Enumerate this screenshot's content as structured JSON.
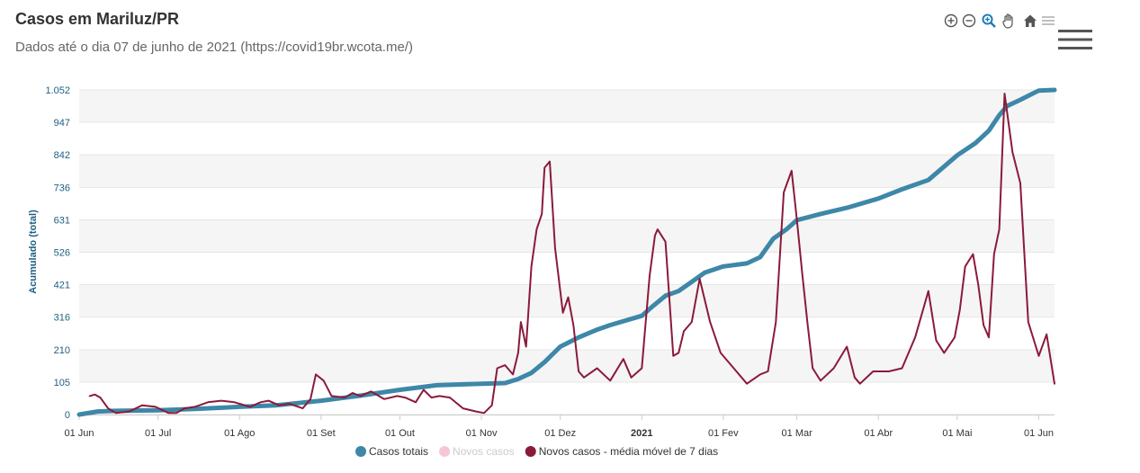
{
  "header": {
    "title": "Casos em Mariluz/PR",
    "subtitle": "Dados até o dia 07 de junho de 2021 (https://covid19br.wcota.me/)"
  },
  "toolbar": {
    "icons": [
      "zoom-in-icon",
      "zoom-out-icon",
      "zoom-icon",
      "pan-icon",
      "home-icon",
      "menu-icon"
    ]
  },
  "colors": {
    "total": "#3e87a8",
    "new_cases": "#f5c6d8",
    "moving_avg": "#8b1a3a",
    "axis_text": "#1f5f82",
    "band": "#f5f5f5"
  },
  "chart_data": {
    "type": "line",
    "x_type": "date",
    "x_range": [
      "2020-06-01",
      "2021-06-07"
    ],
    "ylabel": "Acumulado (total)",
    "ylim": [
      0,
      1052
    ],
    "yticks": [
      0,
      105,
      210,
      316,
      421,
      526,
      631,
      736,
      842,
      947,
      1052
    ],
    "ytick_labels": [
      "0",
      "105",
      "210",
      "316",
      "421",
      "526",
      "631",
      "736",
      "842",
      "947",
      "1.052"
    ],
    "xticks": [
      "2020-06-01",
      "2020-07-01",
      "2020-08-01",
      "2020-09-01",
      "2020-10-01",
      "2020-11-01",
      "2020-12-01",
      "2021-01-01",
      "2021-02-01",
      "2021-03-01",
      "2021-04-01",
      "2021-05-01",
      "2021-06-01"
    ],
    "xtick_labels": [
      "01 Jun",
      "01 Jul",
      "01 Ago",
      "01 Set",
      "01 Out",
      "01 Nov",
      "01 Dez",
      "2021",
      "01 Fev",
      "01 Mar",
      "01 Abr",
      "01 Mai",
      "01 Jun"
    ],
    "bold_ticks": [
      "2021"
    ],
    "grid": true,
    "legend_position": "bottom",
    "series": [
      {
        "name": "Casos totais",
        "color": "#3e87a8",
        "x": [
          "2020-06-01",
          "2020-06-08",
          "2020-06-15",
          "2020-07-01",
          "2020-07-15",
          "2020-08-01",
          "2020-08-15",
          "2020-09-01",
          "2020-09-15",
          "2020-10-01",
          "2020-10-15",
          "2020-11-01",
          "2020-11-10",
          "2020-11-15",
          "2020-11-20",
          "2020-11-25",
          "2020-12-01",
          "2020-12-08",
          "2020-12-15",
          "2020-12-20",
          "2021-01-01",
          "2021-01-05",
          "2021-01-10",
          "2021-01-15",
          "2021-01-20",
          "2021-01-25",
          "2021-02-01",
          "2021-02-10",
          "2021-02-15",
          "2021-02-20",
          "2021-02-25",
          "2021-03-01",
          "2021-03-10",
          "2021-03-20",
          "2021-04-01",
          "2021-04-10",
          "2021-04-20",
          "2021-05-01",
          "2021-05-08",
          "2021-05-13",
          "2021-05-17",
          "2021-05-20",
          "2021-05-25",
          "2021-06-01",
          "2021-06-07"
        ],
        "values": [
          0,
          10,
          12,
          14,
          18,
          25,
          30,
          45,
          60,
          80,
          95,
          100,
          102,
          115,
          135,
          170,
          220,
          250,
          275,
          290,
          320,
          350,
          385,
          400,
          430,
          460,
          480,
          490,
          510,
          570,
          600,
          630,
          650,
          670,
          700,
          730,
          760,
          840,
          880,
          920,
          970,
          1000,
          1020,
          1050,
          1052
        ]
      },
      {
        "name": "Novos casos",
        "color": "#f5c6d8",
        "visible": false,
        "x": [],
        "values": []
      },
      {
        "name": "Novos casos - média móvel de 7 dias",
        "color": "#8b1a3a",
        "x": [
          "2020-06-05",
          "2020-06-07",
          "2020-06-09",
          "2020-06-12",
          "2020-06-15",
          "2020-06-20",
          "2020-06-25",
          "2020-06-30",
          "2020-07-05",
          "2020-07-08",
          "2020-07-11",
          "2020-07-15",
          "2020-07-20",
          "2020-07-25",
          "2020-07-30",
          "2020-08-01",
          "2020-08-05",
          "2020-08-09",
          "2020-08-12",
          "2020-08-16",
          "2020-08-20",
          "2020-08-25",
          "2020-08-28",
          "2020-08-30",
          "2020-09-02",
          "2020-09-05",
          "2020-09-10",
          "2020-09-13",
          "2020-09-16",
          "2020-09-20",
          "2020-09-25",
          "2020-09-30",
          "2020-10-03",
          "2020-10-07",
          "2020-10-10",
          "2020-10-13",
          "2020-10-16",
          "2020-10-20",
          "2020-10-25",
          "2020-10-30",
          "2020-11-02",
          "2020-11-05",
          "2020-11-07",
          "2020-11-10",
          "2020-11-13",
          "2020-11-15",
          "2020-11-16",
          "2020-11-18",
          "2020-11-20",
          "2020-11-22",
          "2020-11-24",
          "2020-11-25",
          "2020-11-27",
          "2020-11-29",
          "2020-12-02",
          "2020-12-04",
          "2020-12-06",
          "2020-12-08",
          "2020-12-10",
          "2020-12-15",
          "2020-12-20",
          "2020-12-25",
          "2020-12-28",
          "2021-01-01",
          "2021-01-04",
          "2021-01-06",
          "2021-01-07",
          "2021-01-10",
          "2021-01-13",
          "2021-01-15",
          "2021-01-17",
          "2021-01-20",
          "2021-01-23",
          "2021-01-27",
          "2021-01-31",
          "2021-02-05",
          "2021-02-10",
          "2021-02-15",
          "2021-02-18",
          "2021-02-21",
          "2021-02-24",
          "2021-02-27",
          "2021-03-01",
          "2021-03-03",
          "2021-03-05",
          "2021-03-07",
          "2021-03-10",
          "2021-03-15",
          "2021-03-20",
          "2021-03-23",
          "2021-03-25",
          "2021-03-30",
          "2021-04-05",
          "2021-04-10",
          "2021-04-15",
          "2021-04-20",
          "2021-04-23",
          "2021-04-26",
          "2021-04-30",
          "2021-05-02",
          "2021-05-04",
          "2021-05-07",
          "2021-05-09",
          "2021-05-11",
          "2021-05-13",
          "2021-05-15",
          "2021-05-17",
          "2021-05-19",
          "2021-05-22",
          "2021-05-25",
          "2021-05-28",
          "2021-06-01",
          "2021-06-04",
          "2021-06-07"
        ],
        "values": [
          60,
          65,
          55,
          20,
          5,
          10,
          30,
          25,
          5,
          5,
          20,
          25,
          40,
          45,
          40,
          35,
          25,
          40,
          45,
          30,
          35,
          20,
          50,
          130,
          110,
          60,
          55,
          70,
          60,
          75,
          50,
          60,
          55,
          40,
          80,
          55,
          60,
          55,
          20,
          10,
          5,
          30,
          150,
          160,
          130,
          200,
          300,
          220,
          480,
          600,
          650,
          800,
          820,
          540,
          330,
          380,
          290,
          140,
          120,
          150,
          110,
          180,
          120,
          150,
          450,
          580,
          600,
          560,
          190,
          200,
          270,
          300,
          440,
          300,
          200,
          150,
          100,
          130,
          140,
          300,
          720,
          790,
          630,
          460,
          300,
          150,
          110,
          150,
          220,
          120,
          100,
          140,
          140,
          150,
          250,
          400,
          240,
          200,
          250,
          340,
          480,
          520,
          420,
          290,
          250,
          520,
          600,
          1040,
          850,
          750,
          300,
          190,
          260,
          100
        ]
      }
    ]
  }
}
